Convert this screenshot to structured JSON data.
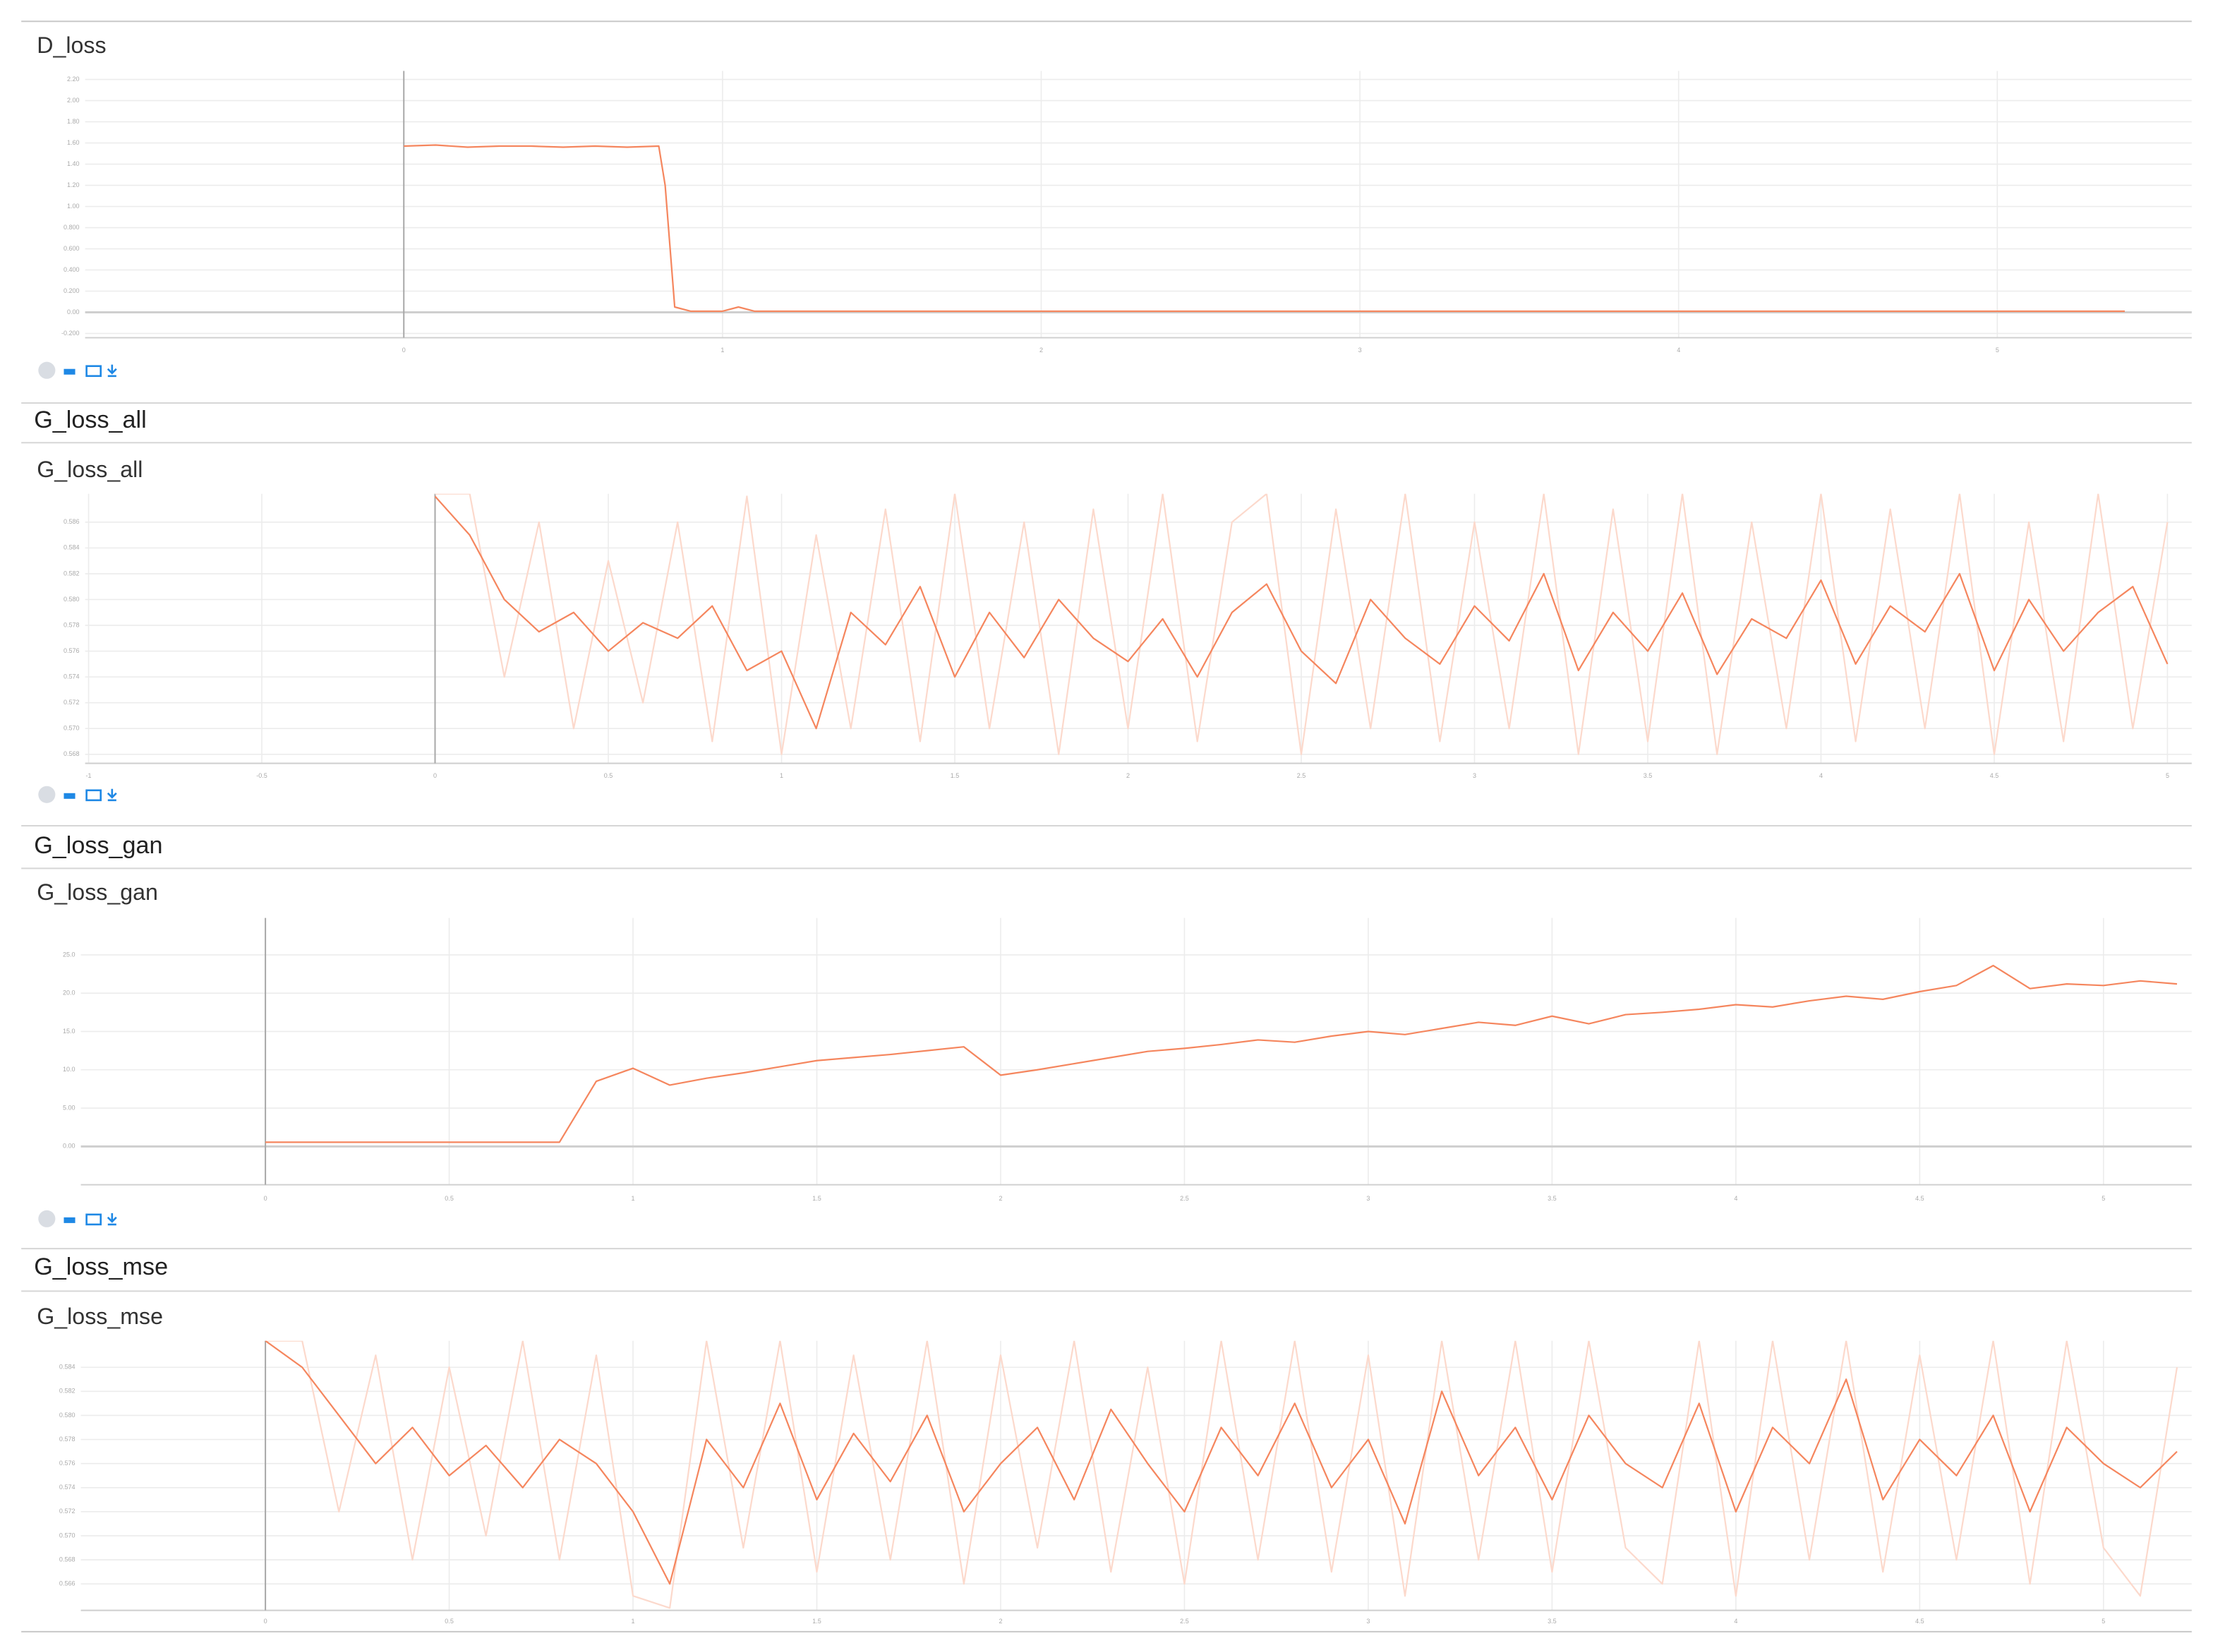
{
  "chart_data": [
    {
      "type": "line",
      "title": "D_loss",
      "x": [
        0,
        0.1,
        0.2,
        0.3,
        0.4,
        0.5,
        0.6,
        0.7,
        0.8,
        0.82,
        0.85,
        0.9,
        1.0,
        1.05,
        1.1,
        1.5,
        2,
        2.5,
        3,
        3.5,
        4,
        4.5,
        5,
        5.4
      ],
      "series": [
        {
          "color": "#f5865e",
          "values": [
            1.57,
            1.58,
            1.56,
            1.57,
            1.57,
            1.56,
            1.57,
            1.56,
            1.57,
            1.2,
            0.05,
            0.01,
            0.01,
            0.05,
            0.01,
            0.01,
            0.01,
            0.01,
            0.01,
            0.01,
            0.01,
            0.01,
            0.01,
            0.01
          ]
        }
      ],
      "xlim": [
        -1,
        5.61
      ],
      "xticks": [
        0,
        1,
        2,
        3,
        4,
        5
      ],
      "ylim": [
        -0.24,
        2.28
      ],
      "yticks": [
        {
          "value": 2.2,
          "label": "2.20"
        },
        {
          "value": 2.0,
          "label": "2.00"
        },
        {
          "value": 1.8,
          "label": "1.80"
        },
        {
          "value": 1.6,
          "label": "1.60"
        },
        {
          "value": 1.4,
          "label": "1.40"
        },
        {
          "value": 1.2,
          "label": "1.20"
        },
        {
          "value": 1.0,
          "label": "1.00"
        },
        {
          "value": 0.8,
          "label": "0.800"
        },
        {
          "value": 0.6,
          "label": "0.600"
        },
        {
          "value": 0.4,
          "label": "0.400"
        },
        {
          "value": 0.2,
          "label": "0.200"
        },
        {
          "value": 0,
          "label": "0.00"
        },
        {
          "value": -0.2,
          "label": "-0.200"
        }
      ],
      "grid": true
    },
    {
      "type": "line",
      "section": "G_loss_all",
      "title": "G_loss_all",
      "x": [
        0,
        0.1,
        0.2,
        0.3,
        0.4,
        0.5,
        0.6,
        0.7,
        0.8,
        0.9,
        1.0,
        1.1,
        1.2,
        1.3,
        1.4,
        1.5,
        1.6,
        1.7,
        1.8,
        1.9,
        2.0,
        2.1,
        2.2,
        2.3,
        2.4,
        2.5,
        2.6,
        2.7,
        2.8,
        2.9,
        3.0,
        3.1,
        3.2,
        3.3,
        3.4,
        3.5,
        3.6,
        3.7,
        3.8,
        3.9,
        4.0,
        4.1,
        4.2,
        4.3,
        4.4,
        4.5,
        4.6,
        4.7,
        4.8,
        4.9,
        5.0
      ],
      "series": [
        {
          "color": "#fcd9cc",
          "values": [
            0.5882,
            0.5882,
            0.574,
            0.586,
            0.57,
            0.583,
            0.572,
            0.586,
            0.569,
            0.588,
            0.568,
            0.585,
            0.57,
            0.587,
            0.569,
            0.5882,
            0.57,
            0.586,
            0.568,
            0.587,
            0.57,
            0.5882,
            0.569,
            0.586,
            0.5882,
            0.568,
            0.587,
            0.57,
            0.5882,
            0.569,
            0.586,
            0.57,
            0.5882,
            0.568,
            0.587,
            0.569,
            0.5882,
            0.568,
            0.586,
            0.57,
            0.5882,
            0.569,
            0.587,
            0.57,
            0.5882,
            0.568,
            0.586,
            0.569,
            0.5882,
            0.57,
            0.586
          ]
        },
        {
          "color": "#f5865e",
          "values": [
            0.588,
            0.585,
            0.58,
            0.5775,
            0.579,
            0.576,
            0.5782,
            0.577,
            0.5795,
            0.5745,
            0.576,
            0.57,
            0.579,
            0.5765,
            0.581,
            0.574,
            0.579,
            0.5755,
            0.58,
            0.577,
            0.5752,
            0.5785,
            0.574,
            0.579,
            0.5812,
            0.576,
            0.5735,
            0.58,
            0.577,
            0.575,
            0.5795,
            0.5768,
            0.582,
            0.5745,
            0.579,
            0.576,
            0.5805,
            0.5742,
            0.5785,
            0.577,
            0.5815,
            0.575,
            0.5795,
            0.5775,
            0.582,
            0.5745,
            0.58,
            0.576,
            0.579,
            0.581,
            0.575
          ]
        }
      ],
      "xlim": [
        -1.01,
        5.07
      ],
      "xticks": [
        -1,
        -0.5,
        0,
        0.5,
        1,
        1.5,
        2,
        2.5,
        3,
        3.5,
        4,
        4.5,
        5
      ],
      "ylim": [
        0.5673,
        0.5882
      ],
      "yticks": [
        0.586,
        0.584,
        0.582,
        {
          "value": 0.58,
          "label": "0.580"
        },
        0.578,
        0.576,
        0.574,
        0.572,
        {
          "value": 0.57,
          "label": "0.570"
        },
        0.568
      ],
      "grid": true
    },
    {
      "type": "line",
      "section": "G_loss_gan",
      "title": "G_loss_gan",
      "x": [
        0,
        0.1,
        0.2,
        0.3,
        0.4,
        0.5,
        0.6,
        0.7,
        0.8,
        0.9,
        1.0,
        1.1,
        1.2,
        1.3,
        1.4,
        1.5,
        1.6,
        1.7,
        1.8,
        1.9,
        2.0,
        2.1,
        2.2,
        2.3,
        2.4,
        2.5,
        2.6,
        2.7,
        2.8,
        2.9,
        3.0,
        3.1,
        3.2,
        3.3,
        3.4,
        3.5,
        3.6,
        3.7,
        3.8,
        3.9,
        4.0,
        4.1,
        4.2,
        4.3,
        4.4,
        4.5,
        4.6,
        4.7,
        4.8,
        4.9,
        5.0,
        5.1,
        5.2
      ],
      "series": [
        {
          "color": "#f5865e",
          "values": [
            0.55,
            0.55,
            0.55,
            0.55,
            0.55,
            0.55,
            0.55,
            0.55,
            0.55,
            8.5,
            10.2,
            8.0,
            8.9,
            9.6,
            10.4,
            11.2,
            11.6,
            12.0,
            12.5,
            13.0,
            9.3,
            10.0,
            10.8,
            11.6,
            12.4,
            12.8,
            13.3,
            13.9,
            13.6,
            14.4,
            15.0,
            14.6,
            15.4,
            16.2,
            15.8,
            17.0,
            16.0,
            17.2,
            17.5,
            17.9,
            18.5,
            18.2,
            19.0,
            19.6,
            19.2,
            20.2,
            21.0,
            23.6,
            20.6,
            21.2,
            21.0,
            21.6,
            21.2
          ]
        }
      ],
      "xlim": [
        -0.502,
        5.24
      ],
      "xticks": [
        0,
        0.5,
        1,
        1.5,
        2,
        2.5,
        3,
        3.5,
        4,
        4.5,
        5
      ],
      "ylim": [
        -5.0,
        29.81
      ],
      "yticks": [
        {
          "value": 25,
          "label": "25.0"
        },
        {
          "value": 20,
          "label": "20.0"
        },
        {
          "value": 15,
          "label": "15.0"
        },
        {
          "value": 10,
          "label": "10.0"
        },
        {
          "value": 5,
          "label": "5.00"
        },
        {
          "value": 0,
          "label": "0.00"
        }
      ],
      "grid": true
    },
    {
      "type": "line",
      "section": "G_loss_mse",
      "title": "G_loss_mse",
      "x": [
        0,
        0.1,
        0.2,
        0.3,
        0.4,
        0.5,
        0.6,
        0.7,
        0.8,
        0.9,
        1.0,
        1.1,
        1.2,
        1.3,
        1.4,
        1.5,
        1.6,
        1.7,
        1.8,
        1.9,
        2.0,
        2.1,
        2.2,
        2.3,
        2.4,
        2.5,
        2.6,
        2.7,
        2.8,
        2.9,
        3.0,
        3.1,
        3.2,
        3.3,
        3.4,
        3.5,
        3.6,
        3.7,
        3.8,
        3.9,
        4.0,
        4.1,
        4.2,
        4.3,
        4.4,
        4.5,
        4.6,
        4.7,
        4.8,
        4.9,
        5.0,
        5.1,
        5.2
      ],
      "series": [
        {
          "color": "#fcd9cc",
          "values": [
            0.5862,
            0.5862,
            0.572,
            0.585,
            0.568,
            0.584,
            0.57,
            0.5862,
            0.568,
            0.585,
            0.565,
            0.564,
            0.5862,
            0.569,
            0.5862,
            0.567,
            0.585,
            0.568,
            0.5862,
            0.566,
            0.585,
            0.569,
            0.5862,
            0.567,
            0.584,
            0.566,
            0.5862,
            0.568,
            0.5862,
            0.567,
            0.585,
            0.565,
            0.5862,
            0.568,
            0.5862,
            0.567,
            0.5862,
            0.569,
            0.566,
            0.5862,
            0.565,
            0.5862,
            0.568,
            0.5862,
            0.567,
            0.585,
            0.568,
            0.5862,
            0.566,
            0.5862,
            0.569,
            0.565,
            0.584
          ]
        },
        {
          "color": "#f5865e",
          "values": [
            0.5862,
            0.584,
            0.58,
            0.576,
            0.579,
            0.575,
            0.5775,
            0.574,
            0.578,
            0.576,
            0.572,
            0.566,
            0.578,
            0.574,
            0.581,
            0.573,
            0.5785,
            0.5745,
            0.58,
            0.572,
            0.576,
            0.579,
            0.573,
            0.5805,
            0.576,
            0.572,
            0.579,
            0.575,
            0.581,
            0.574,
            0.578,
            0.571,
            0.582,
            0.575,
            0.579,
            0.573,
            0.58,
            0.576,
            0.574,
            0.581,
            0.572,
            0.579,
            0.576,
            0.583,
            0.573,
            0.578,
            0.575,
            0.58,
            0.572,
            0.579,
            0.576,
            0.574,
            0.577
          ]
        }
      ],
      "xlim": [
        -0.502,
        5.24
      ],
      "xticks": [
        0,
        0.5,
        1,
        1.5,
        2,
        2.5,
        3,
        3.5,
        4,
        4.5,
        5
      ],
      "ylim": [
        0.5638,
        0.5862
      ],
      "yticks": [
        0.584,
        0.582,
        {
          "value": 0.58,
          "label": "0.580"
        },
        0.578,
        0.576,
        0.574,
        0.572,
        {
          "value": 0.57,
          "label": "0.570"
        },
        0.568,
        0.566
      ],
      "grid": true
    }
  ]
}
